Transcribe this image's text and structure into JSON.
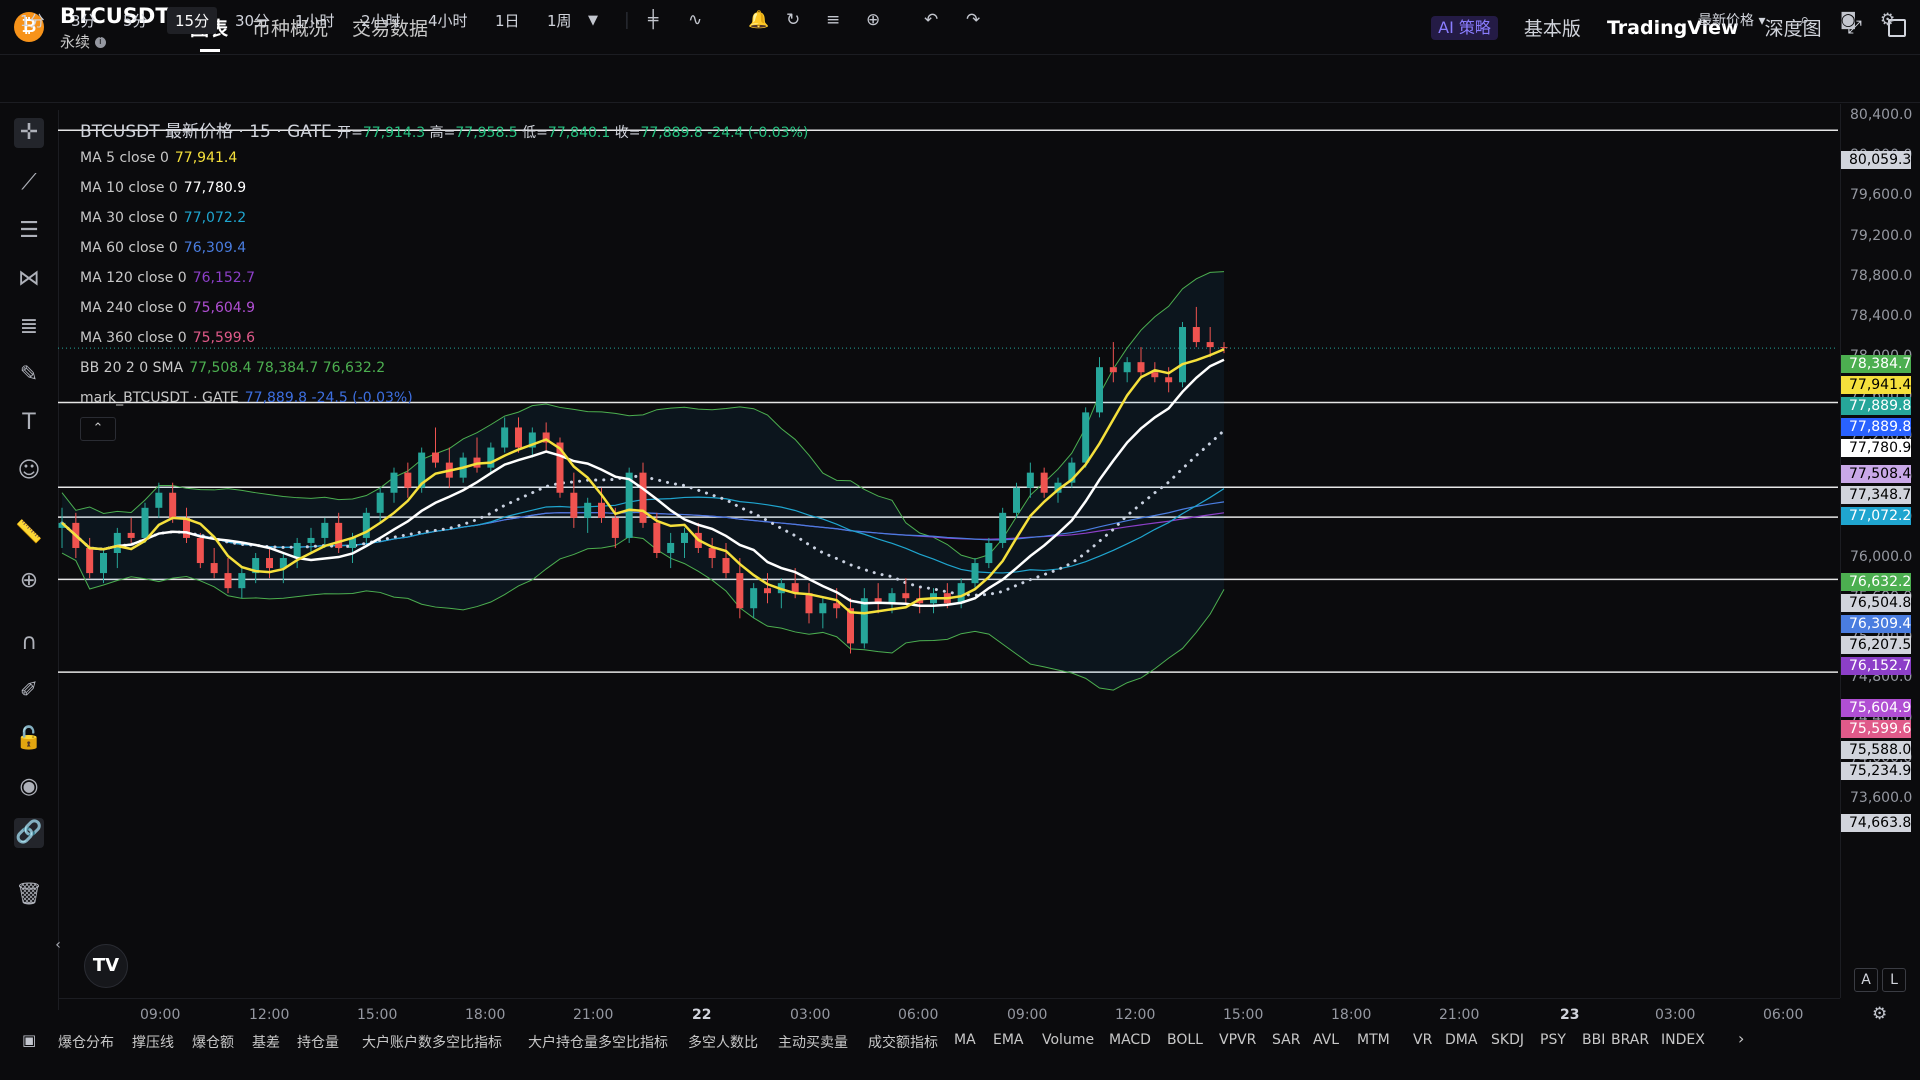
{
  "header": {
    "coin_glyph": "₿",
    "symbol": "BTCUSDT",
    "symbol_arrow": "▾",
    "subtitle": "永续",
    "tabs": [
      "图表",
      "币种概况",
      "交易数据"
    ],
    "ai_label": "AI 策略",
    "basic_label": "基本版",
    "tradingview_label": "TradingView",
    "depth_label": "深度图"
  },
  "toolbar": {
    "timeframes": [
      "1分",
      "3分",
      "5分",
      "15分",
      "30分",
      "1小时",
      "2小时",
      "4小时",
      "1日",
      "1周"
    ],
    "active_timeframe": "15分",
    "price_type": "最新价格 ▾"
  },
  "legend": {
    "title": "BTCUSDT 最新价格 · 15 · GATE",
    "open_label": "开=",
    "open": "77,914.3",
    "high_label": "高=",
    "high": "77,958.5",
    "low_label": "低=",
    "low": "77,840.1",
    "close_label": "收=",
    "close": "77,889.8",
    "change": "-24.4 (-0.03%)",
    "indicators": [
      {
        "label": "MA 5 close 0",
        "value": "77,941.4",
        "color": "#f5e03c"
      },
      {
        "label": "MA 10 close 0",
        "value": "77,780.9",
        "color": "#ffffff"
      },
      {
        "label": "MA 30 close 0",
        "value": "77,072.2",
        "color": "#1fa5cf"
      },
      {
        "label": "MA 60 close 0",
        "value": "76,309.4",
        "color": "#4a7de0"
      },
      {
        "label": "MA 120 close 0",
        "value": "76,152.7",
        "color": "#8c3fc8"
      },
      {
        "label": "MA 240 close 0",
        "value": "75,604.9",
        "color": "#b04fd3"
      },
      {
        "label": "MA 360 close 0",
        "value": "75,599.6",
        "color": "#e05a8a"
      },
      {
        "label": "BB 20 2 0 SMA",
        "value": "77,508.4 78,384.7 76,632.2",
        "color": "#4caf50"
      },
      {
        "label": "mark_BTCUSDT · GATE",
        "value": "77,889.8 -24.5 (-0.03%)",
        "color": "#3d6fe0"
      }
    ],
    "collapse_glyph": "⌃"
  },
  "price_axis": {
    "labels": [
      "80,400.0",
      "80,000.0",
      "79,600.0",
      "79,200.0",
      "78,800.0",
      "78,400.0",
      "78,000.0",
      "77,600.0",
      "77,200.0",
      "76,800.0",
      "76,400.0",
      "76,000.0",
      "75,600.0",
      "75,200.0",
      "74,800.0",
      "74,400.0",
      "74,000.0",
      "73,600.0"
    ],
    "tags": [
      {
        "value": "80,059.3",
        "bg": "#d1d4dc",
        "fg": "#000000"
      },
      {
        "value": "78,384.7",
        "bg": "#4caf50",
        "fg": "#ffffff"
      },
      {
        "value": "77,941.4",
        "bg": "#f5e03c",
        "fg": "#000000"
      },
      {
        "value": "77,889.8",
        "bg": "#26a69a",
        "fg": "#ffffff"
      },
      {
        "value": "77,889.8",
        "bg": "#2962ff",
        "fg": "#ffffff"
      },
      {
        "value": "77,780.9",
        "bg": "#ffffff",
        "fg": "#000000"
      },
      {
        "value": "77,508.4",
        "bg": "#c9a8e8",
        "fg": "#000000"
      },
      {
        "value": "77,348.7",
        "bg": "#d1d4dc",
        "fg": "#000000"
      },
      {
        "value": "77,072.2",
        "bg": "#1fa5cf",
        "fg": "#ffffff"
      },
      {
        "value": "76,632.2",
        "bg": "#4caf50",
        "fg": "#ffffff"
      },
      {
        "value": "76,504.8",
        "bg": "#d1d4dc",
        "fg": "#000000"
      },
      {
        "value": "76,309.4",
        "bg": "#4a7de0",
        "fg": "#ffffff"
      },
      {
        "value": "76,207.5",
        "bg": "#d1d4dc",
        "fg": "#000000"
      },
      {
        "value": "76,152.7",
        "bg": "#8c3fc8",
        "fg": "#ffffff"
      },
      {
        "value": "75,604.9",
        "bg": "#b04fd3",
        "fg": "#ffffff"
      },
      {
        "value": "75,599.6",
        "bg": "#e05a8a",
        "fg": "#ffffff"
      },
      {
        "value": "75,588.0",
        "bg": "#d1d4dc",
        "fg": "#000000"
      },
      {
        "value": "75,234.9",
        "bg": "#d1d4dc",
        "fg": "#000000"
      },
      {
        "value": "74,663.8",
        "bg": "#d1d4dc",
        "fg": "#000000"
      }
    ]
  },
  "time_axis": {
    "labels": [
      "09:00",
      "12:00",
      "15:00",
      "18:00",
      "21:00",
      "22",
      "03:00",
      "06:00",
      "09:00",
      "12:00",
      "15:00",
      "18:00",
      "21:00",
      "23",
      "03:00",
      "06:00"
    ],
    "bold": [
      "22",
      "23"
    ]
  },
  "bottom": {
    "items": [
      "爆仓分布",
      "撑压线",
      "爆仓额",
      "基差",
      "持仓量",
      "大户账户数多空比指标",
      "大户持仓量多空比指标",
      "多空人数比",
      "主动买卖量",
      "成交额指标",
      "MA",
      "EMA",
      "Volume",
      "MACD",
      "BOLL",
      "VPVR",
      "SAR",
      "AVL",
      "MTM",
      "VR",
      "DMA",
      "SKDJ",
      "PSY",
      "BBI",
      "BRAR",
      "INDEX"
    ],
    "next_glyph": "›"
  },
  "logo_text": "TV",
  "scale_buttons": [
    "A",
    "L"
  ],
  "chart_data": {
    "type": "candlestick",
    "horizontal_lines": [
      80059.3,
      77348.7,
      76504.8,
      76207.5,
      75588.0,
      74663.8
    ],
    "current_price": 77889.8,
    "ylim": [
      73600,
      80400
    ],
    "bullish_color": "#26a69a",
    "bearish_color": "#ef5350",
    "candles_approx": [
      [
        76100,
        76300,
        75900,
        76150
      ],
      [
        76150,
        76250,
        75800,
        75900
      ],
      [
        75900,
        76000,
        75600,
        75650
      ],
      [
        75650,
        75900,
        75550,
        75850
      ],
      [
        75850,
        76100,
        75700,
        76050
      ],
      [
        76050,
        76200,
        75950,
        76000
      ],
      [
        76000,
        76350,
        75950,
        76300
      ],
      [
        76300,
        76550,
        76200,
        76450
      ],
      [
        76450,
        76550,
        76150,
        76200
      ],
      [
        76200,
        76300,
        75950,
        76000
      ],
      [
        76000,
        76050,
        75700,
        75750
      ],
      [
        75750,
        75900,
        75600,
        75650
      ],
      [
        75650,
        75800,
        75450,
        75500
      ],
      [
        75500,
        75700,
        75400,
        75650
      ],
      [
        75650,
        75850,
        75550,
        75800
      ],
      [
        75800,
        75900,
        75600,
        75700
      ],
      [
        75700,
        75850,
        75550,
        75800
      ],
      [
        75800,
        76000,
        75700,
        75950
      ],
      [
        75950,
        76100,
        75850,
        76000
      ],
      [
        76000,
        76200,
        75900,
        76150
      ],
      [
        76150,
        76250,
        75850,
        75900
      ],
      [
        75900,
        76050,
        75750,
        76000
      ],
      [
        76000,
        76300,
        75950,
        76250
      ],
      [
        76250,
        76500,
        76150,
        76450
      ],
      [
        76450,
        76700,
        76350,
        76650
      ],
      [
        76650,
        76750,
        76400,
        76500
      ],
      [
        76500,
        76900,
        76450,
        76850
      ],
      [
        76850,
        77100,
        76700,
        76750
      ],
      [
        76750,
        76900,
        76500,
        76600
      ],
      [
        76600,
        76850,
        76550,
        76800
      ],
      [
        76800,
        77000,
        76650,
        76700
      ],
      [
        76700,
        76950,
        76650,
        76900
      ],
      [
        76900,
        77200,
        76850,
        77100
      ],
      [
        77100,
        77200,
        76850,
        76900
      ],
      [
        76900,
        77100,
        76800,
        77050
      ],
      [
        77050,
        77150,
        76850,
        76950
      ],
      [
        76950,
        77000,
        76400,
        76450
      ],
      [
        76450,
        76650,
        76100,
        76200
      ],
      [
        76200,
        76400,
        76050,
        76350
      ],
      [
        76350,
        76500,
        76150,
        76200
      ],
      [
        76200,
        76300,
        75900,
        76000
      ],
      [
        76000,
        76700,
        75950,
        76650
      ],
      [
        76650,
        76750,
        76100,
        76150
      ],
      [
        76150,
        76250,
        75800,
        75850
      ],
      [
        75850,
        76050,
        75700,
        75950
      ],
      [
        75950,
        76100,
        75800,
        76050
      ],
      [
        76050,
        76150,
        75850,
        75900
      ],
      [
        75900,
        76000,
        75700,
        75800
      ],
      [
        75800,
        75950,
        75600,
        75650
      ],
      [
        75650,
        75800,
        75200,
        75300
      ],
      [
        75300,
        75550,
        75200,
        75500
      ],
      [
        75500,
        75650,
        75350,
        75450
      ],
      [
        75450,
        75600,
        75300,
        75550
      ],
      [
        75550,
        75700,
        75400,
        75450
      ],
      [
        75450,
        75550,
        75150,
        75250
      ],
      [
        75250,
        75400,
        75100,
        75350
      ],
      [
        75350,
        75500,
        75200,
        75300
      ],
      [
        75300,
        75400,
        74850,
        74950
      ],
      [
        74950,
        75500,
        74900,
        75400
      ],
      [
        75400,
        75550,
        75250,
        75350
      ],
      [
        75350,
        75500,
        75250,
        75450
      ],
      [
        75450,
        75600,
        75350,
        75400
      ],
      [
        75400,
        75500,
        75250,
        75350
      ],
      [
        75350,
        75500,
        75250,
        75450
      ],
      [
        75450,
        75550,
        75300,
        75350
      ],
      [
        75350,
        75600,
        75300,
        75550
      ],
      [
        75550,
        75800,
        75500,
        75750
      ],
      [
        75750,
        76000,
        75700,
        75950
      ],
      [
        75950,
        76300,
        75900,
        76250
      ],
      [
        76250,
        76550,
        76200,
        76500
      ],
      [
        76500,
        76750,
        76400,
        76650
      ],
      [
        76650,
        76700,
        76400,
        76450
      ],
      [
        76450,
        76600,
        76350,
        76550
      ],
      [
        76550,
        76800,
        76500,
        76750
      ],
      [
        76750,
        77300,
        76700,
        77250
      ],
      [
        77250,
        77800,
        77200,
        77700
      ],
      [
        77700,
        77950,
        77550,
        77650
      ],
      [
        77650,
        77800,
        77550,
        77750
      ],
      [
        77750,
        77900,
        77600,
        77650
      ],
      [
        77650,
        77750,
        77550,
        77600
      ],
      [
        77600,
        77700,
        77450,
        77550
      ],
      [
        77550,
        78150,
        77500,
        78100
      ],
      [
        78100,
        78300,
        77900,
        77950
      ],
      [
        77950,
        78100,
        77800,
        77900
      ],
      [
        77900,
        77950,
        77840,
        77890
      ]
    ]
  }
}
